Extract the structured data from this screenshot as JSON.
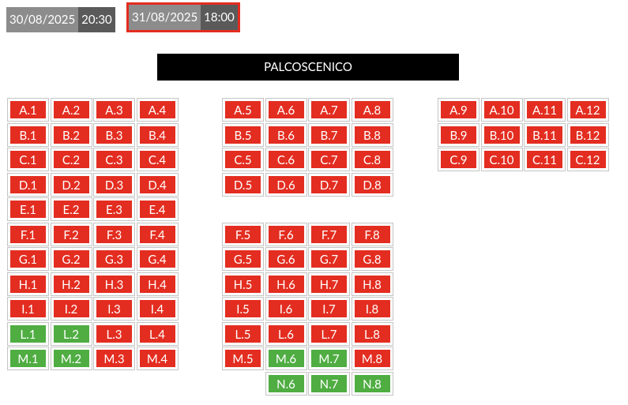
{
  "dates": [
    {
      "date": "30/08/2025",
      "time": "20:30",
      "selected": false
    },
    {
      "date": "31/08/2025",
      "time": "18:00",
      "selected": true
    }
  ],
  "stage": "PALCOSCENICO",
  "colors": {
    "occupied": "#e32d20",
    "available": "#4fad42",
    "selected_border": "#e32d20"
  },
  "seat_rows": [
    [
      "A.1",
      "A.2",
      "A.3",
      "A.4",
      "A.5",
      "A.6",
      "A.7",
      "A.8",
      "A.9",
      "A.10",
      "A.11",
      "A.12"
    ],
    [
      "B.1",
      "B.2",
      "B.3",
      "B.4",
      "B.5",
      "B.6",
      "B.7",
      "B.8",
      "B.9",
      "B.10",
      "B.11",
      "B.12"
    ],
    [
      "C.1",
      "C.2",
      "C.3",
      "C.4",
      "C.5",
      "C.6",
      "C.7",
      "C.8",
      "C.9",
      "C.10",
      "C.11",
      "C.12"
    ],
    [
      "D.1",
      "D.2",
      "D.3",
      "D.4",
      "D.5",
      "D.6",
      "D.7",
      "D.8"
    ],
    [
      "E.1",
      "E.2",
      "E.3",
      "E.4"
    ],
    [
      "F.1",
      "F.2",
      "F.3",
      "F.4",
      "F.5",
      "F.6",
      "F.7",
      "F.8"
    ],
    [
      "G.1",
      "G.2",
      "G.3",
      "G.4",
      "G.5",
      "G.6",
      "G.7",
      "G.8"
    ],
    [
      "H.1",
      "H.2",
      "H.3",
      "H.4",
      "H.5",
      "H.6",
      "H.7",
      "H.8"
    ],
    [
      "I.1",
      "I.2",
      "I.3",
      "I.4",
      "I.5",
      "I.6",
      "I.7",
      "I.8"
    ],
    [
      "L.1",
      "L.2",
      "L.3",
      "L.4",
      "L.5",
      "L.6",
      "L.7",
      "L.8"
    ],
    [
      "M.1",
      "M.2",
      "M.3",
      "M.4",
      "M.5",
      "M.6",
      "M.7",
      "M.8"
    ],
    [
      "N.6",
      "N.7",
      "N.8"
    ]
  ],
  "available_seats": [
    "L.1",
    "L.2",
    "M.1",
    "M.2",
    "M.6",
    "M.7",
    "N.6",
    "N.7",
    "N.8"
  ]
}
